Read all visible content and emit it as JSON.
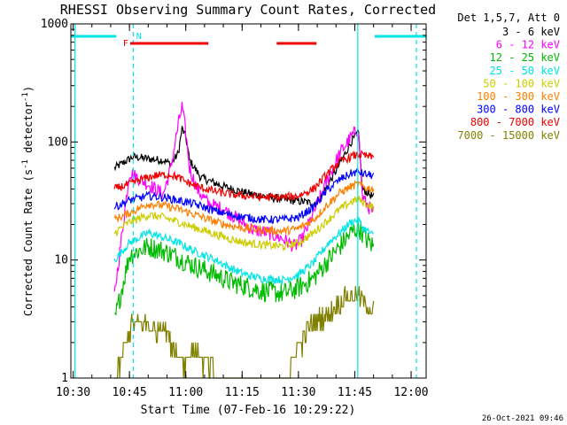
{
  "chart_data": {
    "type": "line",
    "title": "RHESSI Observing Summary Count Rates, Corrected",
    "xlabel": "Start Time (07-Feb-16 10:29:22)",
    "ylabel_main": "Corrected Count Rate (s",
    "ylabel_sup1": "-1",
    "ylabel_mid": " detector",
    "ylabel_sup2": "-1",
    "ylabel_end": ")",
    "yscale": "log",
    "ylim": [
      1,
      1000
    ],
    "xlim_min": [
      29.4,
      124
    ],
    "x_ticks": [
      {
        "t": 30,
        "label": "10:30"
      },
      {
        "t": 45,
        "label": "10:45"
      },
      {
        "t": 60,
        "label": "11:00"
      },
      {
        "t": 75,
        "label": "11:15"
      },
      {
        "t": 90,
        "label": "11:30"
      },
      {
        "t": 105,
        "label": "11:45"
      },
      {
        "t": 120,
        "label": "12:00"
      }
    ],
    "y_ticks": [
      {
        "v": 1,
        "label": "1"
      },
      {
        "v": 10,
        "label": "10"
      },
      {
        "v": 100,
        "label": "100"
      },
      {
        "v": 1000,
        "label": "1000"
      }
    ],
    "grid": false,
    "legend_position": "right",
    "legend_header": "Det 1,5,7, Att 0",
    "timestamp": "26-Oct-2021 09:46",
    "colors": {
      "axes": "#000000",
      "cyan_marker": "#00e5e5",
      "flare_marker": "#ee0000"
    },
    "markers": {
      "night": [
        [
          29.4,
          41.5
        ],
        [
          110.3,
          124
        ]
      ],
      "flare": [
        [
          45.2,
          66.0
        ],
        [
          84.2,
          94.8
        ]
      ],
      "cyan_lines": [
        30.5,
        46.0,
        105.8,
        121.4
      ],
      "dashed_lines": [
        46.0,
        121.4
      ],
      "labels": [
        {
          "text": "N",
          "t": 47.5
        },
        {
          "text": "F",
          "t": 44.0
        }
      ]
    },
    "series": [
      {
        "name": "3 - 6 keV",
        "color": "#000000",
        "points": [
          [
            41,
            60
          ],
          [
            46,
            75
          ],
          [
            50,
            72
          ],
          [
            54,
            70
          ],
          [
            56,
            65
          ],
          [
            58,
            80
          ],
          [
            59,
            130
          ],
          [
            60,
            110
          ],
          [
            61,
            70
          ],
          [
            64,
            50
          ],
          [
            70,
            42
          ],
          [
            76,
            37
          ],
          [
            82,
            34
          ],
          [
            88,
            32
          ],
          [
            92,
            31
          ],
          [
            94,
            30
          ],
          [
            96,
            34
          ],
          [
            99,
            50
          ],
          [
            102,
            75
          ],
          [
            104,
            100
          ],
          [
            106,
            120
          ],
          [
            107,
            40
          ],
          [
            108,
            38
          ],
          [
            110,
            34
          ]
        ]
      },
      {
        "name": "6 - 12 keV",
        "color": "#ff00ff",
        "points": [
          [
            41,
            5
          ],
          [
            45,
            55
          ],
          [
            48,
            48
          ],
          [
            52,
            40
          ],
          [
            54,
            36
          ],
          [
            56,
            60
          ],
          [
            58,
            140
          ],
          [
            59,
            200
          ],
          [
            60,
            120
          ],
          [
            61,
            60
          ],
          [
            63,
            40
          ],
          [
            66,
            30
          ],
          [
            70,
            27
          ],
          [
            74,
            22
          ],
          [
            78,
            18
          ],
          [
            82,
            17
          ],
          [
            86,
            15
          ],
          [
            89,
            13
          ],
          [
            91,
            15
          ],
          [
            94,
            25
          ],
          [
            98,
            50
          ],
          [
            101,
            80
          ],
          [
            104,
            110
          ],
          [
            106,
            130
          ],
          [
            107,
            35
          ],
          [
            108,
            30
          ],
          [
            110,
            25
          ]
        ]
      },
      {
        "name": "12 - 25 keV",
        "color": "#00bb00",
        "points": [
          [
            41,
            3
          ],
          [
            45,
            11
          ],
          [
            50,
            13
          ],
          [
            54,
            12
          ],
          [
            58,
            10.5
          ],
          [
            62,
            9
          ],
          [
            68,
            7.5
          ],
          [
            72,
            6.5
          ],
          [
            76,
            6
          ],
          [
            80,
            5.5
          ],
          [
            86,
            5.2
          ],
          [
            90,
            5.8
          ],
          [
            94,
            7
          ],
          [
            98,
            10
          ],
          [
            101,
            13
          ],
          [
            104,
            17
          ],
          [
            106,
            19
          ],
          [
            107,
            17
          ],
          [
            108,
            15
          ],
          [
            110,
            13
          ]
        ]
      },
      {
        "name": "25 - 50 keV",
        "color": "#00e5e5",
        "points": [
          [
            41,
            10
          ],
          [
            45,
            14
          ],
          [
            50,
            17
          ],
          [
            54,
            15.5
          ],
          [
            58,
            14
          ],
          [
            62,
            12
          ],
          [
            68,
            10
          ],
          [
            72,
            8.5
          ],
          [
            76,
            7.5
          ],
          [
            80,
            7
          ],
          [
            86,
            6.8
          ],
          [
            90,
            7.5
          ],
          [
            94,
            9.5
          ],
          [
            98,
            14
          ],
          [
            101,
            17
          ],
          [
            104,
            21
          ],
          [
            106,
            22
          ],
          [
            107,
            19
          ],
          [
            108,
            18
          ],
          [
            110,
            16
          ]
        ]
      },
      {
        "name": "50 - 100 keV",
        "color": "#cccc00",
        "points": [
          [
            41,
            17
          ],
          [
            45,
            21
          ],
          [
            50,
            24
          ],
          [
            54,
            23
          ],
          [
            58,
            21
          ],
          [
            62,
            19
          ],
          [
            68,
            16.5
          ],
          [
            72,
            15
          ],
          [
            76,
            14
          ],
          [
            80,
            13.5
          ],
          [
            86,
            13
          ],
          [
            90,
            14
          ],
          [
            94,
            17
          ],
          [
            98,
            22
          ],
          [
            101,
            27
          ],
          [
            104,
            31
          ],
          [
            106,
            33
          ],
          [
            107,
            31
          ],
          [
            108,
            30
          ],
          [
            110,
            28
          ]
        ]
      },
      {
        "name": "100 - 300 keV",
        "color": "#ff7f00",
        "points": [
          [
            41,
            22
          ],
          [
            45,
            25
          ],
          [
            50,
            30
          ],
          [
            54,
            29
          ],
          [
            58,
            27
          ],
          [
            62,
            24.5
          ],
          [
            68,
            21
          ],
          [
            72,
            19.5
          ],
          [
            76,
            18.5
          ],
          [
            80,
            18
          ],
          [
            86,
            17.5
          ],
          [
            90,
            18.5
          ],
          [
            94,
            22
          ],
          [
            98,
            30
          ],
          [
            101,
            37
          ],
          [
            104,
            42
          ],
          [
            106,
            44
          ],
          [
            107,
            42
          ],
          [
            108,
            41
          ],
          [
            110,
            40
          ]
        ]
      },
      {
        "name": "300 - 800 keV",
        "color": "#0000ff",
        "points": [
          [
            41,
            28
          ],
          [
            45,
            32
          ],
          [
            50,
            35
          ],
          [
            54,
            34
          ],
          [
            58,
            32
          ],
          [
            62,
            30
          ],
          [
            68,
            26
          ],
          [
            72,
            24
          ],
          [
            76,
            23
          ],
          [
            80,
            22
          ],
          [
            86,
            22
          ],
          [
            90,
            23
          ],
          [
            94,
            28
          ],
          [
            98,
            40
          ],
          [
            101,
            48
          ],
          [
            104,
            54
          ],
          [
            106,
            56
          ],
          [
            107,
            54
          ],
          [
            108,
            53
          ],
          [
            110,
            52
          ]
        ]
      },
      {
        "name": "800 - 7000 keV",
        "color": "#ee0000",
        "points": [
          [
            41,
            40
          ],
          [
            45,
            44
          ],
          [
            48,
            48
          ],
          [
            52,
            52
          ],
          [
            56,
            53
          ],
          [
            58,
            50
          ],
          [
            60,
            46
          ],
          [
            64,
            41
          ],
          [
            68,
            38
          ],
          [
            72,
            36
          ],
          [
            76,
            35
          ],
          [
            80,
            34
          ],
          [
            86,
            34
          ],
          [
            90,
            35
          ],
          [
            94,
            40
          ],
          [
            98,
            55
          ],
          [
            101,
            68
          ],
          [
            104,
            75
          ],
          [
            106,
            78
          ],
          [
            107,
            77
          ],
          [
            108,
            76
          ],
          [
            110,
            74
          ]
        ]
      },
      {
        "name": "7000 - 15000 keV",
        "color": "#808000",
        "points": [
          [
            41,
            1
          ],
          [
            44,
            2
          ],
          [
            46,
            3
          ],
          [
            48,
            3
          ],
          [
            52,
            2.5
          ],
          [
            54,
            3
          ],
          [
            56,
            2
          ],
          [
            58,
            1.6
          ],
          [
            60,
            1.4
          ],
          [
            62,
            1.8
          ],
          [
            66,
            1.3
          ],
          [
            68,
            1
          ],
          [
            86,
            1
          ],
          [
            88,
            1.3
          ],
          [
            90,
            1.8
          ],
          [
            92,
            2.5
          ],
          [
            94,
            3
          ],
          [
            96,
            3.2
          ],
          [
            98,
            3.5
          ],
          [
            100,
            4
          ],
          [
            102,
            4.8
          ],
          [
            104,
            5
          ],
          [
            106,
            5
          ],
          [
            107,
            4.5
          ],
          [
            108,
            4
          ],
          [
            110,
            4
          ]
        ]
      }
    ]
  }
}
